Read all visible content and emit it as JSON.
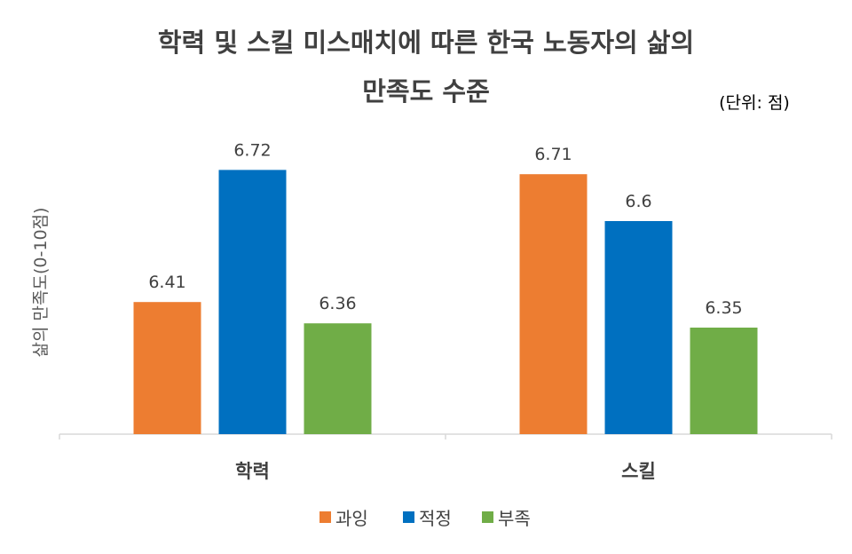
{
  "chart_data": {
    "type": "bar",
    "title_lines": [
      "학력 및 스킬 미스매치에 따른 한국 노동자의 삶의",
      "만족도 수준"
    ],
    "unit_note": "(단위: 점)",
    "xlabel": "",
    "ylabel": "삶의 만족도(0-10점)",
    "categories": [
      "학력",
      "스킬"
    ],
    "series": [
      {
        "name": "과잉",
        "color": "#ED7D31",
        "values": [
          6.41,
          6.71
        ]
      },
      {
        "name": "적정",
        "color": "#0070C0",
        "values": [
          6.72,
          6.6
        ]
      },
      {
        "name": "부족",
        "color": "#70AD47",
        "values": [
          6.36,
          6.35
        ]
      }
    ],
    "ylim": [
      6.1,
      6.8
    ],
    "grid": false,
    "legend_position": "bottom",
    "data_labels": true
  }
}
